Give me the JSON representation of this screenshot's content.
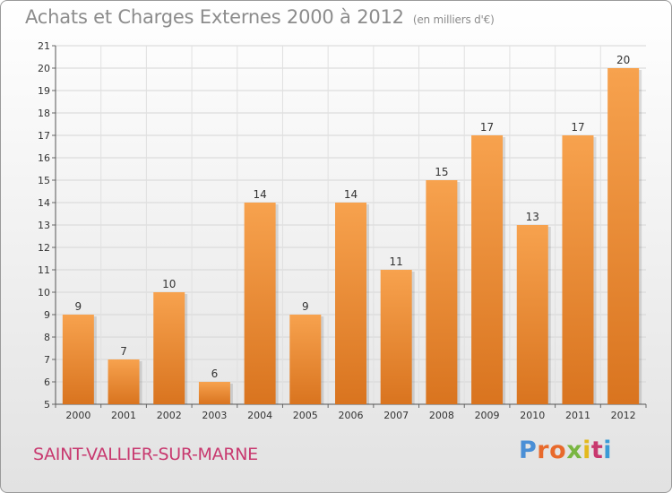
{
  "header": {
    "title": "Achats et Charges Externes 2000 à 2012",
    "unit_note": "(en milliers d'€)"
  },
  "footer": {
    "town": "SAINT-VALLIER-SUR-MARNE",
    "brand": "Proxiti",
    "brand_colors": [
      "#4a8fd6",
      "#e86a2c",
      "#e86a2c",
      "#79b641",
      "#e3b91e",
      "#c8396f",
      "#3a9bd6"
    ]
  },
  "chart_data": {
    "type": "bar",
    "categories": [
      "2000",
      "2001",
      "2002",
      "2003",
      "2004",
      "2005",
      "2006",
      "2007",
      "2008",
      "2009",
      "2010",
      "2011",
      "2012"
    ],
    "values": [
      9,
      7,
      10,
      6,
      14,
      9,
      14,
      11,
      15,
      17,
      13,
      17,
      20
    ],
    "ylim": [
      5,
      21
    ],
    "yticks": [
      5,
      6,
      7,
      8,
      9,
      10,
      11,
      12,
      13,
      14,
      15,
      16,
      17,
      18,
      19,
      20,
      21
    ],
    "grid": true,
    "bar_color_top": "#f7a24e",
    "bar_color_bottom": "#d9741f"
  }
}
